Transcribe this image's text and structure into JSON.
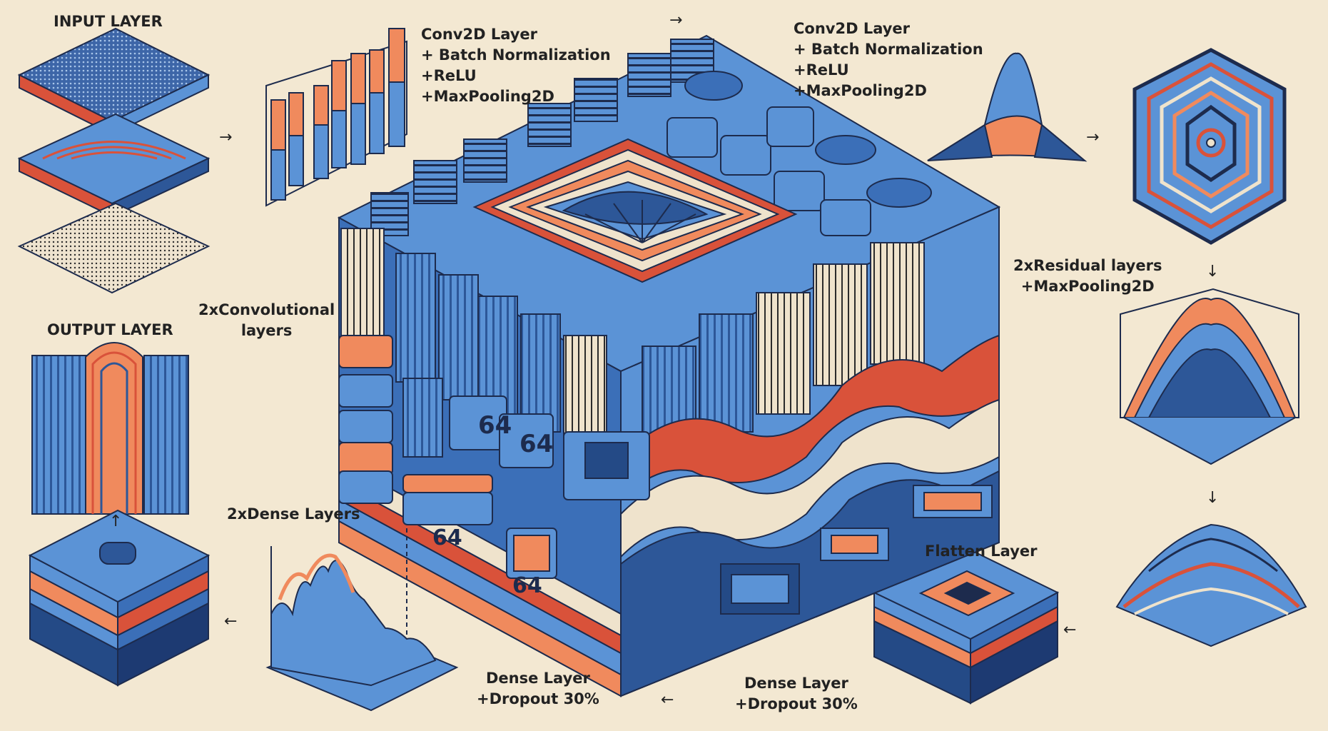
{
  "labels": {
    "input_layer": "INPUT LAYER",
    "output_layer": "OUTPUT LAYER",
    "conv_block_1": [
      "Conv2D Layer",
      "+ Batch Normalization",
      "+ReLU",
      "+MaxPooling2D"
    ],
    "conv_block_2": [
      "Conv2D Layer",
      "+ Batch Normalization",
      "+ReLU",
      "+MaxPooling2D"
    ],
    "residual": [
      "2xResidual layers",
      "+MaxPooling2D"
    ],
    "conv_layers": [
      "2xConvolutional",
      "layers"
    ],
    "dense_layers": "2xDense Layers",
    "flatten": "Flatten Layer",
    "dense_dropout_1": [
      "Dense Layer",
      "+Dropout 30%"
    ],
    "dense_dropout_2": [
      "Dense Layer",
      "+Dropout 30%"
    ]
  },
  "cube_numbers": [
    "64",
    "64",
    "64",
    "64"
  ],
  "arrows": {
    "right": "→",
    "left": "←",
    "down": "↓",
    "up": "↑"
  },
  "colors": {
    "background": "#f3e8d2",
    "blue": "#5b93d6",
    "dark_blue": "#244a86",
    "orange": "#f08a5d",
    "red": "#d9523a",
    "cream": "#efe3cc",
    "outline": "#1d2b4d"
  }
}
